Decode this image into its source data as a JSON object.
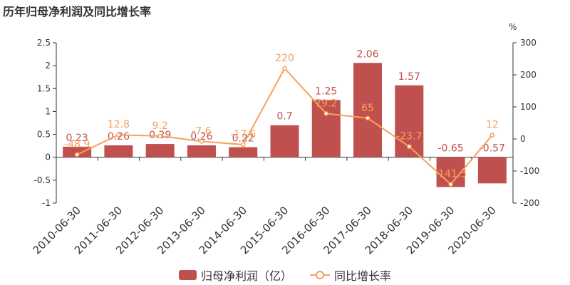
{
  "title": "历年归母净利润及同比增长率",
  "unit_right": "%",
  "colors": {
    "bar": "#c0504d",
    "line": "#f4a15d",
    "axis": "#333333",
    "bar_label": "#c0504d",
    "line_label": "#f4a15d"
  },
  "legend": {
    "bar_label": "归母净利润（亿）",
    "line_label": "同比增长率"
  },
  "chart_data": {
    "type": "bar",
    "categories": [
      "2010-06-30",
      "2011-06-30",
      "2012-06-30",
      "2013-06-30",
      "2014-06-30",
      "2015-06-30",
      "2016-06-30",
      "2017-06-30",
      "2018-06-30",
      "2019-06-30",
      "2020-06-30"
    ],
    "series": [
      {
        "name": "归母净利润（亿）",
        "type": "bar",
        "axis": "left",
        "values": [
          0.23,
          0.26,
          0.29,
          0.26,
          0.22,
          0.7,
          1.25,
          2.06,
          1.57,
          -0.65,
          -0.57
        ],
        "labels": [
          "0.23",
          "0.26",
          "0.29",
          "0.26",
          "0.22",
          "0.7",
          "1.25",
          "2.06",
          "1.57",
          "-0.65",
          "-0.57"
        ]
      },
      {
        "name": "同比增长率",
        "type": "line",
        "axis": "right",
        "values": [
          -48.9,
          12.8,
          9.2,
          -7.6,
          -17.6,
          220,
          79.2,
          65,
          -23.7,
          -141.5,
          12
        ],
        "labels": [
          "-48.9",
          "12.8",
          "9.2",
          "-7.6",
          "-17.6",
          "220",
          "79.2",
          "65",
          "-23.7",
          "-141.5",
          "12"
        ]
      }
    ],
    "y_left": {
      "lim": [
        -1,
        2.5
      ],
      "ticks": [
        -1,
        -0.5,
        0,
        0.5,
        1,
        1.5,
        2,
        2.5
      ],
      "tick_labels": [
        "-1",
        "-0.5",
        "0",
        "0.5",
        "1",
        "1.5",
        "2",
        "2.5"
      ]
    },
    "y_right": {
      "lim": [
        -200,
        300
      ],
      "ticks": [
        -200,
        -100,
        0,
        100,
        200,
        300
      ],
      "tick_labels": [
        "-200",
        "-100",
        "0",
        "100",
        "200",
        "300"
      ]
    },
    "grid": false,
    "legend_position": "bottom"
  }
}
